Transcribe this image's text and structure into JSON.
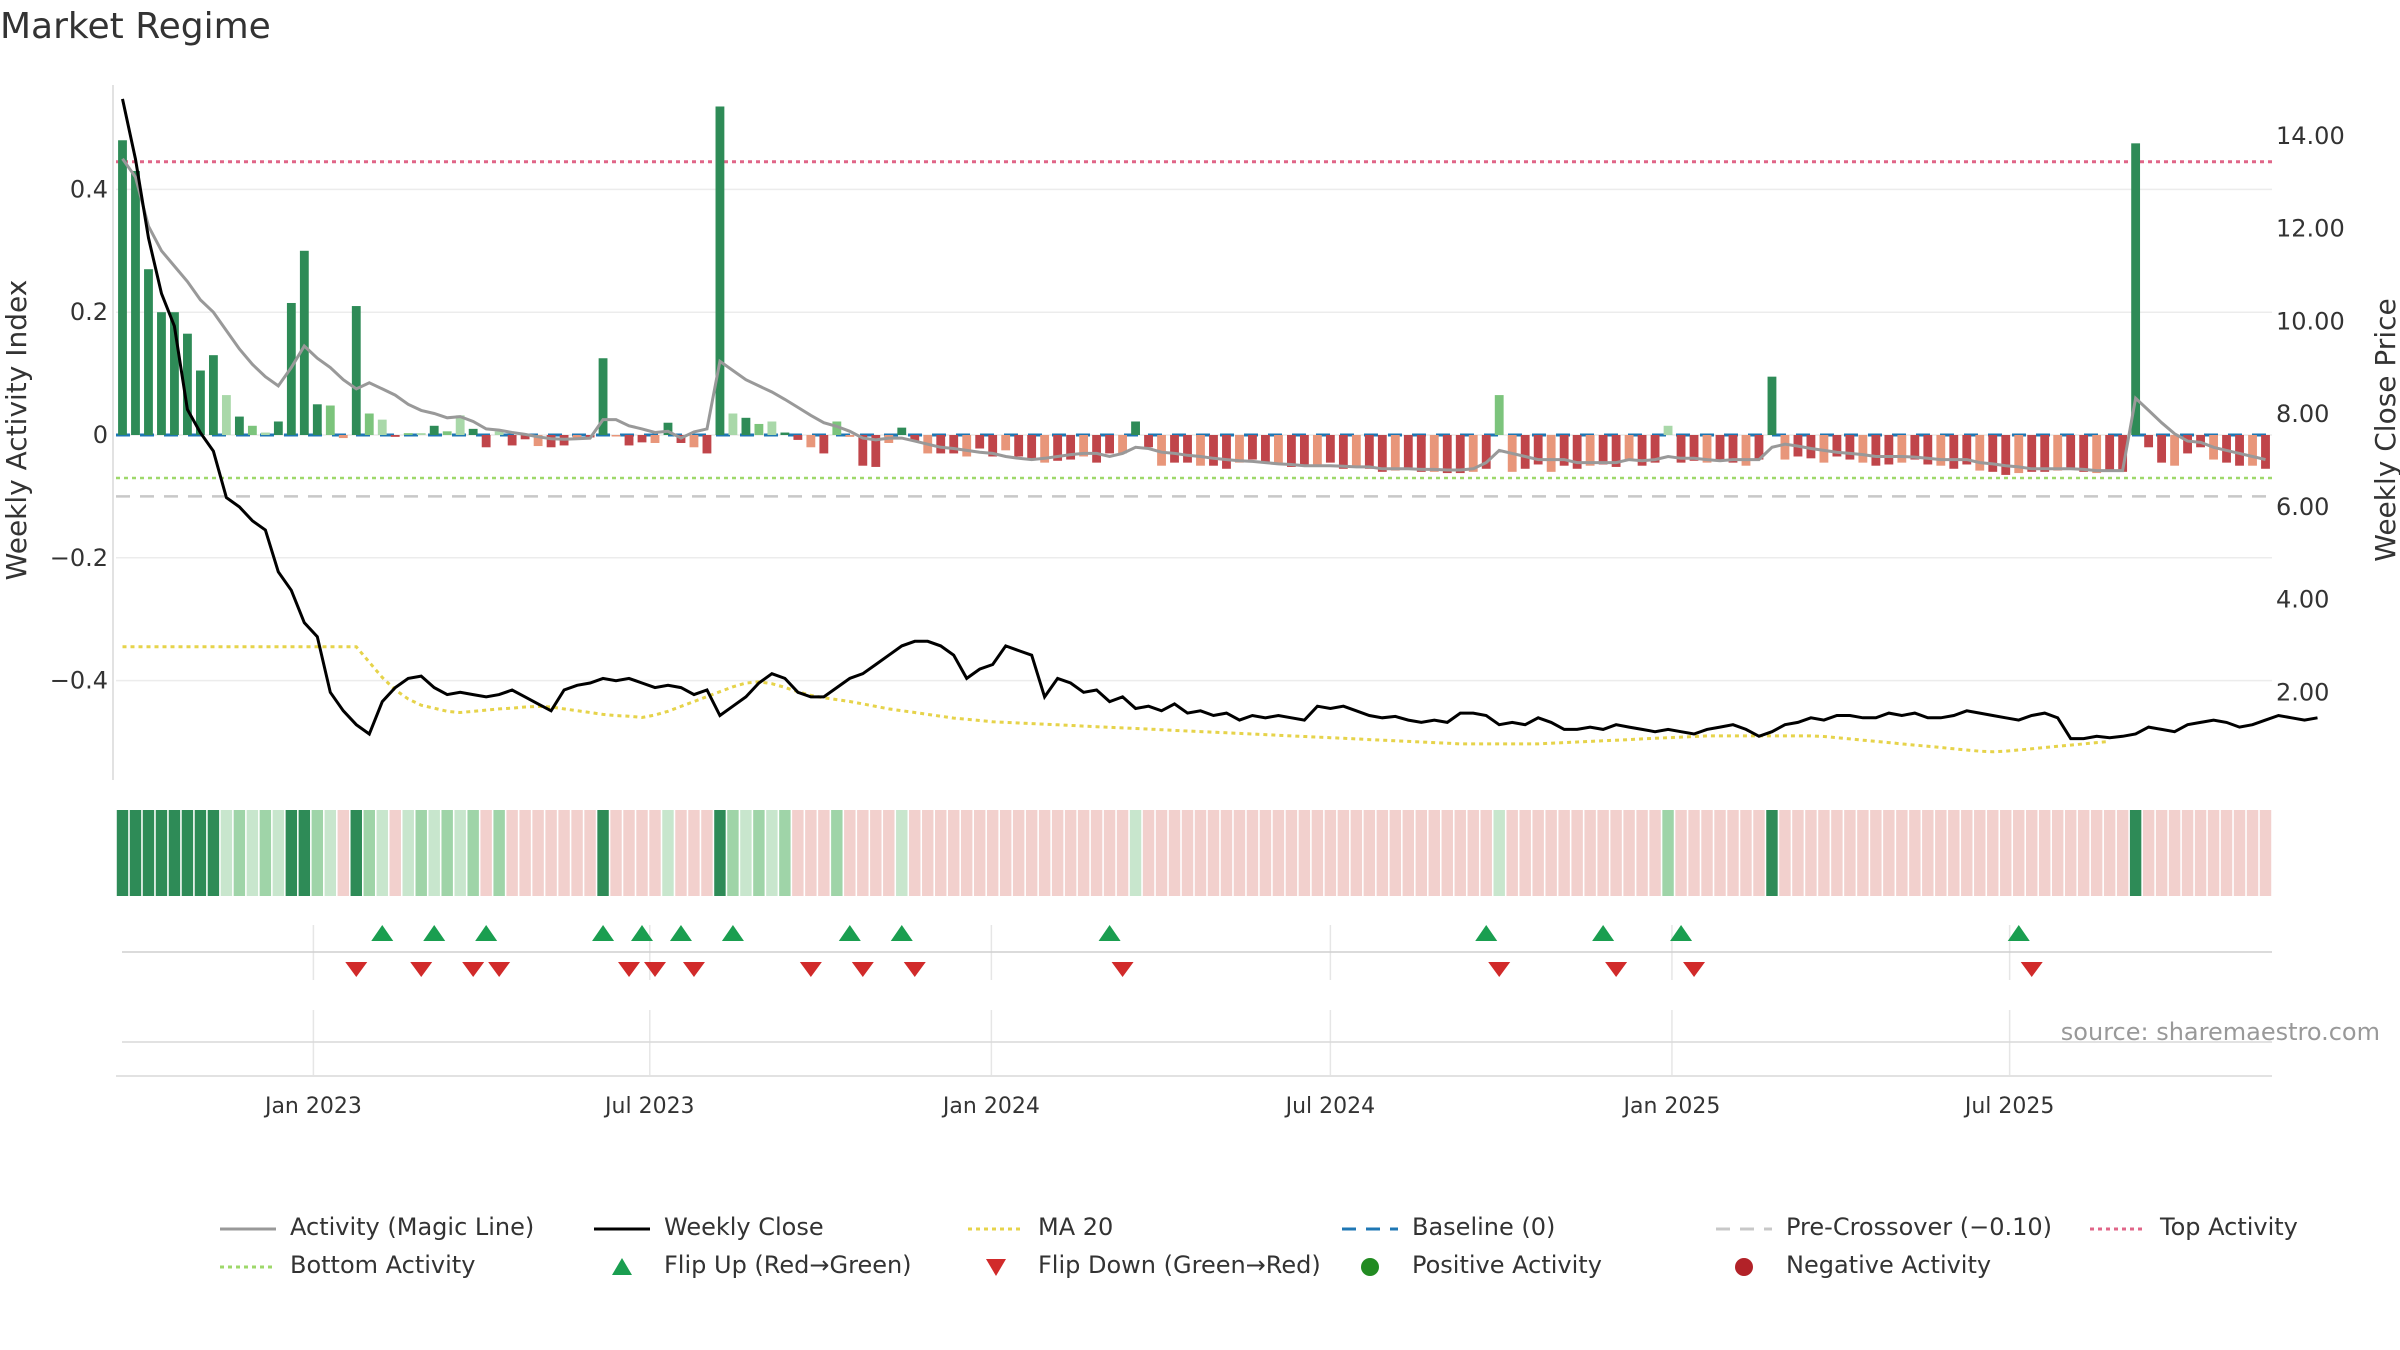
{
  "title": "Market Regime",
  "source_note": "source: sharemaestro.com",
  "colors": {
    "strong_green": "#2e8b57",
    "light_green": "#7cc47c",
    "pale_green": "#a9d8a9",
    "strong_red": "#c0454a",
    "light_red": "#e8967a",
    "magic_line": "#999999",
    "weekly_close": "#000000",
    "ma20": "#e6d34a",
    "baseline": "#1f77b4",
    "pre_crossover": "#c8c8c8",
    "top_activity": "#e06688",
    "bottom_activity": "#9ed86a",
    "flip_up": "#1a9e50",
    "flip_down": "#d12a2a",
    "positive": "#228b22",
    "negative": "#b22228"
  },
  "chart_data": {
    "type": "bar",
    "x_tick_labels": [
      "Jan 2023",
      "Jul 2023",
      "Jan 2024",
      "Jul 2024",
      "Jan 2025",
      "Jul 2025"
    ],
    "x_tick_weeks": [
      14.7,
      40.6,
      66.9,
      93.0,
      119.3,
      145.3
    ],
    "left_axis": {
      "label": "Weekly Activity Index",
      "ylim": [
        -0.57,
        0.57
      ],
      "ticks": [
        -0.4,
        -0.2,
        0,
        0.2,
        0.4
      ],
      "tick_labels": [
        "−0.4",
        "−0.2",
        "0",
        "0.2",
        "0.4"
      ]
    },
    "right_axis": {
      "label": "Weekly Close Price",
      "ylim": [
        0,
        15.1
      ],
      "ticks": [
        2,
        4,
        6,
        8,
        10,
        12,
        14
      ],
      "tick_labels": [
        "2.00",
        "4.00",
        "6.00",
        "8.00",
        "10.00",
        "12.00",
        "14.00"
      ]
    },
    "reference_lines": {
      "baseline": 0,
      "pre_crossover": -0.1,
      "top_activity": 0.445,
      "bottom_activity": -0.07
    },
    "activity_index": [
      0.48,
      0.43,
      0.27,
      0.2,
      0.2,
      0.165,
      0.105,
      0.13,
      0.065,
      0.03,
      0.015,
      0.004,
      0.022,
      0.215,
      0.3,
      0.05,
      0.048,
      -0.005,
      0.21,
      0.035,
      0.025,
      -0.003,
      0.003,
      0.003,
      0.015,
      0.006,
      0.032,
      0.01,
      -0.02,
      0.006,
      -0.017,
      -0.007,
      -0.018,
      -0.02,
      -0.017,
      -0.005,
      -0.004,
      0.125,
      -0.002,
      -0.017,
      -0.012,
      -0.013,
      0.02,
      -0.013,
      -0.02,
      -0.03,
      0.535,
      0.035,
      0.028,
      0.018,
      0.022,
      0.004,
      -0.008,
      -0.02,
      -0.03,
      0.022,
      -0.003,
      -0.05,
      -0.052,
      -0.013,
      0.012,
      -0.01,
      -0.03,
      -0.03,
      -0.03,
      -0.035,
      -0.022,
      -0.035,
      -0.025,
      -0.035,
      -0.04,
      -0.045,
      -0.042,
      -0.04,
      -0.035,
      -0.045,
      -0.03,
      -0.03,
      0.022,
      -0.02,
      -0.05,
      -0.045,
      -0.045,
      -0.05,
      -0.05,
      -0.055,
      -0.045,
      -0.04,
      -0.045,
      -0.048,
      -0.052,
      -0.05,
      -0.05,
      -0.045,
      -0.055,
      -0.05,
      -0.055,
      -0.06,
      -0.058,
      -0.055,
      -0.06,
      -0.06,
      -0.062,
      -0.062,
      -0.06,
      -0.055,
      0.065,
      -0.06,
      -0.055,
      -0.048,
      -0.06,
      -0.05,
      -0.055,
      -0.05,
      -0.048,
      -0.052,
      -0.04,
      -0.05,
      -0.045,
      0.015,
      -0.045,
      -0.042,
      -0.045,
      -0.04,
      -0.045,
      -0.05,
      -0.04,
      0.095,
      -0.04,
      -0.035,
      -0.038,
      -0.045,
      -0.035,
      -0.04,
      -0.045,
      -0.05,
      -0.048,
      -0.045,
      -0.04,
      -0.048,
      -0.05,
      -0.055,
      -0.048,
      -0.058,
      -0.06,
      -0.065,
      -0.062,
      -0.06,
      -0.06,
      -0.058,
      -0.055,
      -0.06,
      -0.062,
      -0.058,
      -0.06,
      0.475,
      -0.02,
      -0.045,
      -0.05,
      -0.03,
      -0.02,
      -0.04,
      -0.045,
      -0.05,
      -0.05,
      -0.055
    ],
    "magic_line": [
      0.45,
      0.42,
      0.34,
      0.3,
      0.275,
      0.25,
      0.22,
      0.2,
      0.17,
      0.14,
      0.115,
      0.095,
      0.08,
      0.11,
      0.145,
      0.125,
      0.11,
      0.09,
      0.075,
      0.085,
      0.075,
      0.065,
      0.05,
      0.04,
      0.035,
      0.028,
      0.03,
      0.022,
      0.01,
      0.008,
      0.004,
      0.001,
      -0.003,
      -0.006,
      -0.007,
      -0.006,
      -0.005,
      0.025,
      0.025,
      0.015,
      0.01,
      0.004,
      0.006,
      -0.005,
      0.005,
      0.01,
      0.12,
      0.105,
      0.09,
      0.08,
      0.07,
      0.058,
      0.045,
      0.032,
      0.02,
      0.014,
      0.006,
      -0.005,
      -0.008,
      -0.005,
      -0.005,
      -0.01,
      -0.015,
      -0.02,
      -0.022,
      -0.025,
      -0.028,
      -0.03,
      -0.035,
      -0.038,
      -0.04,
      -0.038,
      -0.035,
      -0.032,
      -0.03,
      -0.03,
      -0.035,
      -0.03,
      -0.02,
      -0.022,
      -0.028,
      -0.03,
      -0.033,
      -0.035,
      -0.038,
      -0.04,
      -0.042,
      -0.043,
      -0.045,
      -0.047,
      -0.048,
      -0.05,
      -0.05,
      -0.05,
      -0.051,
      -0.052,
      -0.052,
      -0.055,
      -0.055,
      -0.055,
      -0.056,
      -0.056,
      -0.057,
      -0.057,
      -0.055,
      -0.045,
      -0.025,
      -0.03,
      -0.035,
      -0.04,
      -0.04,
      -0.04,
      -0.045,
      -0.045,
      -0.045,
      -0.045,
      -0.04,
      -0.042,
      -0.04,
      -0.035,
      -0.038,
      -0.038,
      -0.04,
      -0.042,
      -0.04,
      -0.04,
      -0.04,
      -0.02,
      -0.015,
      -0.018,
      -0.022,
      -0.025,
      -0.028,
      -0.03,
      -0.032,
      -0.035,
      -0.035,
      -0.035,
      -0.036,
      -0.038,
      -0.04,
      -0.04,
      -0.04,
      -0.045,
      -0.047,
      -0.05,
      -0.052,
      -0.055,
      -0.055,
      -0.055,
      -0.055,
      -0.056,
      -0.058,
      -0.058,
      -0.058,
      0.06,
      0.04,
      0.02,
      0.002,
      -0.01,
      -0.012,
      -0.02,
      -0.025,
      -0.03,
      -0.035,
      -0.04
    ],
    "weekly_close": [
      14.8,
      13.5,
      11.8,
      10.6,
      9.9,
      8.1,
      7.6,
      7.2,
      6.2,
      6.0,
      5.7,
      5.5,
      4.6,
      4.2,
      3.5,
      3.2,
      2.0,
      1.6,
      1.3,
      1.1,
      1.8,
      2.1,
      2.3,
      2.35,
      2.1,
      1.95,
      2.0,
      1.95,
      1.9,
      1.95,
      2.05,
      1.9,
      1.75,
      1.6,
      2.05,
      2.15,
      2.2,
      2.3,
      2.25,
      2.3,
      2.2,
      2.1,
      2.15,
      2.1,
      1.95,
      2.05,
      1.5,
      1.7,
      1.9,
      2.2,
      2.4,
      2.3,
      2.0,
      1.9,
      1.9,
      2.1,
      2.3,
      2.4,
      2.6,
      2.8,
      3.0,
      3.1,
      3.1,
      3.0,
      2.8,
      2.3,
      2.5,
      2.6,
      3.0,
      2.9,
      2.8,
      1.9,
      2.3,
      2.2,
      2.0,
      2.05,
      1.8,
      1.9,
      1.65,
      1.7,
      1.6,
      1.75,
      1.55,
      1.6,
      1.5,
      1.55,
      1.4,
      1.5,
      1.45,
      1.5,
      1.45,
      1.4,
      1.7,
      1.65,
      1.7,
      1.6,
      1.5,
      1.45,
      1.48,
      1.4,
      1.35,
      1.4,
      1.35,
      1.55,
      1.55,
      1.5,
      1.3,
      1.35,
      1.3,
      1.45,
      1.35,
      1.2,
      1.2,
      1.25,
      1.2,
      1.3,
      1.25,
      1.2,
      1.15,
      1.2,
      1.15,
      1.1,
      1.2,
      1.25,
      1.3,
      1.2,
      1.05,
      1.15,
      1.3,
      1.35,
      1.45,
      1.4,
      1.5,
      1.5,
      1.45,
      1.45,
      1.55,
      1.5,
      1.55,
      1.45,
      1.45,
      1.5,
      1.6,
      1.55,
      1.5,
      1.45,
      1.4,
      1.5,
      1.55,
      1.45,
      1.0,
      1.0,
      1.05,
      1.02,
      1.05,
      1.1,
      1.25,
      1.2,
      1.15,
      1.3,
      1.35,
      1.4,
      1.35,
      1.25,
      1.3,
      1.4,
      1.5,
      1.45,
      1.4,
      1.45
    ],
    "ma20_activity": [
      -0.345,
      -0.345,
      -0.345,
      -0.345,
      -0.345,
      -0.345,
      -0.345,
      -0.345,
      -0.345,
      -0.345,
      -0.345,
      -0.345,
      -0.345,
      -0.345,
      -0.345,
      -0.345,
      -0.345,
      -0.345,
      -0.345,
      -0.37,
      -0.395,
      -0.415,
      -0.43,
      -0.44,
      -0.445,
      -0.45,
      -0.452,
      -0.45,
      -0.448,
      -0.446,
      -0.445,
      -0.443,
      -0.442,
      -0.443,
      -0.446,
      -0.449,
      -0.452,
      -0.455,
      -0.457,
      -0.458,
      -0.46,
      -0.456,
      -0.45,
      -0.442,
      -0.434,
      -0.426,
      -0.418,
      -0.41,
      -0.404,
      -0.402,
      -0.405,
      -0.411,
      -0.418,
      -0.424,
      -0.428,
      -0.431,
      -0.434,
      -0.438,
      -0.442,
      -0.446,
      -0.449,
      -0.452,
      -0.455,
      -0.458,
      -0.461,
      -0.463,
      -0.465,
      -0.467,
      -0.468,
      -0.469,
      -0.47,
      -0.471,
      -0.472,
      -0.473,
      -0.474,
      -0.475,
      -0.476,
      -0.477,
      -0.478,
      -0.479,
      -0.48,
      -0.481,
      -0.482,
      -0.483,
      -0.484,
      -0.485,
      -0.486,
      -0.487,
      -0.488,
      -0.489,
      -0.49,
      -0.491,
      -0.492,
      -0.493,
      -0.494,
      -0.495,
      -0.496,
      -0.497,
      -0.498,
      -0.499,
      -0.5,
      -0.501,
      -0.502,
      -0.503,
      -0.503,
      -0.503,
      -0.503,
      -0.503,
      -0.503,
      -0.503,
      -0.502,
      -0.501,
      -0.5,
      -0.499,
      -0.498,
      -0.497,
      -0.496,
      -0.495,
      -0.494,
      -0.493,
      -0.492,
      -0.491,
      -0.49,
      -0.49,
      -0.49,
      -0.49,
      -0.49,
      -0.49,
      -0.49,
      -0.49,
      -0.49,
      -0.491,
      -0.493,
      -0.495,
      -0.497,
      -0.499,
      -0.501,
      -0.503,
      -0.505,
      -0.507,
      -0.509,
      -0.511,
      -0.513,
      -0.515,
      -0.516,
      -0.515,
      -0.513,
      -0.511,
      -0.509,
      -0.507,
      -0.505,
      -0.503,
      -0.501,
      -0.499
    ],
    "flip_up_weeks": [
      20,
      24,
      28,
      37,
      40,
      43,
      47,
      56,
      60,
      76,
      105,
      114,
      120,
      146
    ],
    "flip_down_weeks": [
      18,
      23,
      27,
      29,
      39,
      41,
      44,
      53,
      57,
      61,
      77,
      106,
      115,
      121,
      147
    ]
  },
  "legend": {
    "row1": [
      "Activity (Magic Line)",
      "Weekly Close",
      "MA 20",
      "Baseline (0)",
      "Pre-Crossover (−0.10)",
      "Top Activity"
    ],
    "row2": [
      "Bottom Activity",
      "Flip Up (Red→Green)",
      "Flip Down (Green→Red)",
      "Positive Activity",
      "Negative Activity"
    ]
  }
}
